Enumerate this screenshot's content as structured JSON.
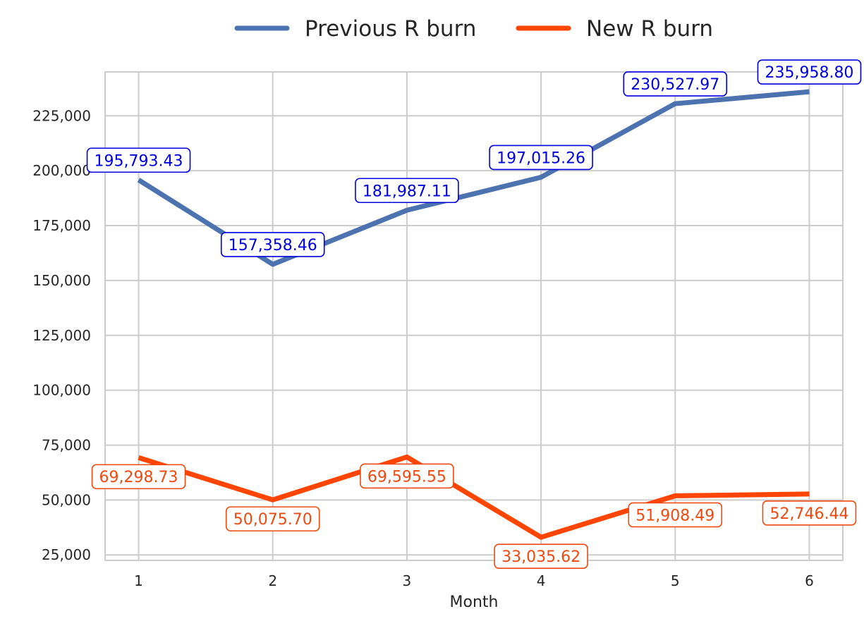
{
  "chart_data": {
    "type": "line",
    "title": "",
    "xlabel": "Month",
    "ylabel": "",
    "x": [
      1,
      2,
      3,
      4,
      5,
      6
    ],
    "xticks": [
      "1",
      "2",
      "3",
      "4",
      "5",
      "6"
    ],
    "yticks": [
      "25,000",
      "50,000",
      "75,000",
      "100,000",
      "125,000",
      "150,000",
      "175,000",
      "200,000",
      "225,000"
    ],
    "ytick_values": [
      25000,
      50000,
      75000,
      100000,
      125000,
      150000,
      175000,
      200000,
      225000
    ],
    "ylim": [
      22500,
      245000
    ],
    "xlim": [
      0.75,
      6.25
    ],
    "grid": true,
    "legend_position": "top-center",
    "series": [
      {
        "name": "Previous R burn",
        "color": "#4c72b0",
        "label_color": "#0000dd",
        "label_placement": "above",
        "values": [
          195793.43,
          157358.46,
          181987.11,
          197015.26,
          230527.97,
          235958.8
        ],
        "labels": [
          "195,793.43",
          "157,358.46",
          "181,987.11",
          "197,015.26",
          "230,527.97",
          "235,958.80"
        ]
      },
      {
        "name": "New R burn",
        "color": "#ff4500",
        "label_color": "#ee4a10",
        "label_placement": "below",
        "values": [
          69298.73,
          50075.7,
          69595.55,
          33035.62,
          51908.49,
          52746.44
        ],
        "labels": [
          "69,298.73",
          "50,075.70",
          "69,595.55",
          "33,035.62",
          "51,908.49",
          "52,746.44"
        ]
      }
    ]
  }
}
